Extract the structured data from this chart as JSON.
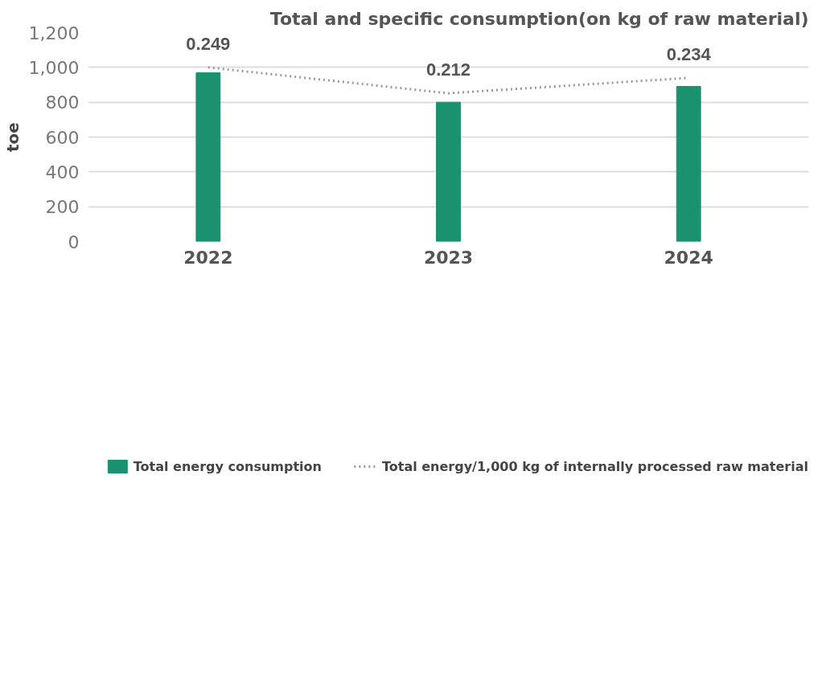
{
  "chart_data": {
    "type": "bar",
    "title": "Total and specific consumption(on kg of raw material)",
    "ylabel": "toe",
    "categories": [
      "2022",
      "2023",
      "2024"
    ],
    "ylim": [
      0,
      1200
    ],
    "yticks": [
      0,
      {
        "value": 200,
        "label": "200"
      },
      {
        "value": 400,
        "label": "400"
      },
      {
        "value": 600,
        "label": "600"
      },
      {
        "value": 800,
        "label": "800"
      },
      {
        "value": 1000,
        "label": "1,000"
      },
      {
        "value": 1200,
        "label": "1,200"
      }
    ],
    "grid": "y",
    "legend": "bottom",
    "series": [
      {
        "name": "Total energy consumption",
        "color": "#1a9270",
        "values": [
          969,
          800,
          891
        ]
      },
      {
        "name": "Total energy/1,000 kg of internally processed raw material",
        "type": "line",
        "axis": "y2",
        "color": "#999999",
        "line_style": "dotted",
        "marker": "none",
        "data_labels": true,
        "values": [
          0.249,
          0.212,
          0.234
        ]
      }
    ]
  }
}
